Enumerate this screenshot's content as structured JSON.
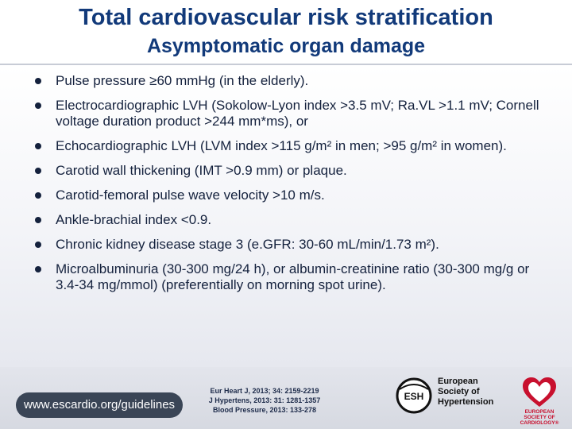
{
  "header": {
    "title": "Total cardiovascular risk stratification",
    "subtitle": "Asymptomatic organ damage"
  },
  "bullets": [
    "Pulse pressure ≥60 mmHg (in the elderly).",
    "Electrocardiographic LVH (Sokolow-Lyon index >3.5 mV; Ra.VL >1.1 mV; Cornell voltage duration product >244 mm*ms), or",
    "Echocardiographic LVH (LVM index >115 g/m² in men; >95 g/m² in women).",
    "Carotid wall thickening (IMT >0.9 mm) or plaque.",
    "Carotid-femoral pulse wave velocity >10 m/s.",
    "Ankle-brachial index <0.9.",
    "Chronic kidney disease stage 3 (e.GFR: 30-60 mL/min/1.73 m²).",
    "Microalbuminuria (30-300 mg/24 h), or albumin-creatinine ratio (30-300 mg/g or 3.4-34 mg/mmol) (preferentially on morning spot urine)."
  ],
  "footer": {
    "url": "www.escardio.org/guidelines",
    "references": [
      "Eur Heart J, 2013; 34: 2159-2219",
      "J Hypertens, 2013: 31: 1281-1357",
      "Blood Pressure, 2013: 133-278"
    ],
    "esh_abbrev": "ESH",
    "esh_name": [
      "European",
      "Society of",
      "Hypertension"
    ],
    "esc_name": [
      "EUROPEAN",
      "SOCIETY OF",
      "CARDIOLOGY®"
    ]
  },
  "colors": {
    "title": "#123a7a",
    "text": "#14213d",
    "url_pill": "#3a4556",
    "esc_red": "#c8102e"
  }
}
